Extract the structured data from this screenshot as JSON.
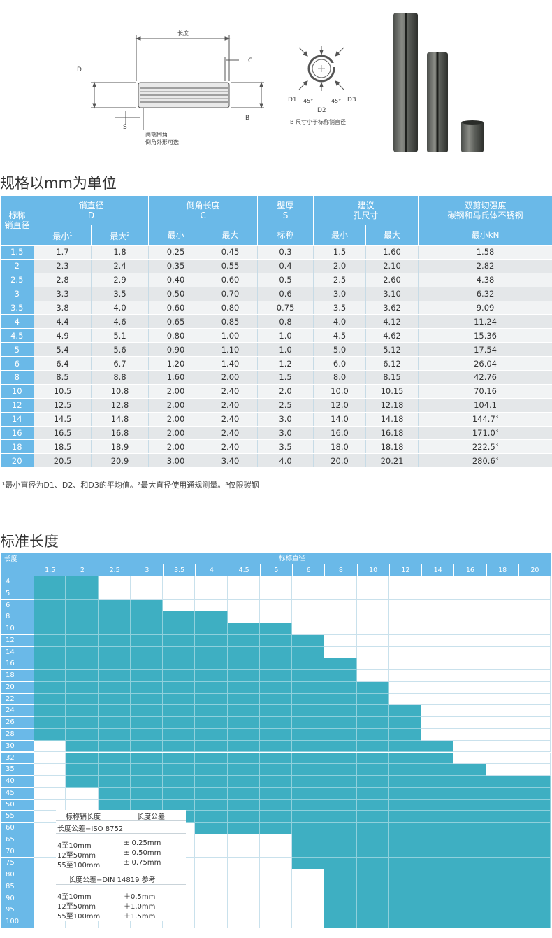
{
  "drawing": {
    "length_label": "长度",
    "c_label": "C",
    "d_label": "D",
    "b_label": "B",
    "s_label": "S",
    "chamfer_note1": "两端倒角",
    "chamfer_note2": "倒角外形可选",
    "d1_label": "D1",
    "d2_label": "D2",
    "d3_label": "D3",
    "angle1": "45°",
    "angle2": "45°",
    "b_note": "B 尺寸小于标称销直径"
  },
  "spec": {
    "title": "规格以mm为单位",
    "headers": {
      "nominal": "标称\n销直径",
      "pin_dia": "销直径",
      "pin_dia_sub": "D",
      "chamfer": "倒角长度",
      "chamfer_sub": "C",
      "wall": "壁厚",
      "wall_sub": "S",
      "hole": "建议\n孔尺寸",
      "shear": "双剪切强度\n碳钢和马氏体不锈钢",
      "min": "最小",
      "max": "最大",
      "nominal_sub": "标称",
      "min_kn": "最小kN",
      "sup1": "1",
      "sup2": "2"
    },
    "rows": [
      {
        "n": "1.5",
        "dmin": "1.7",
        "dmax": "1.8",
        "cmin": "0.25",
        "cmax": "0.45",
        "s": "0.3",
        "hmin": "1.5",
        "hmax": "1.60",
        "kn": "1.58",
        "sup": ""
      },
      {
        "n": "2",
        "dmin": "2.3",
        "dmax": "2.4",
        "cmin": "0.35",
        "cmax": "0.55",
        "s": "0.4",
        "hmin": "2.0",
        "hmax": "2.10",
        "kn": "2.82",
        "sup": ""
      },
      {
        "n": "2.5",
        "dmin": "2.8",
        "dmax": "2.9",
        "cmin": "0.40",
        "cmax": "0.60",
        "s": "0.5",
        "hmin": "2.5",
        "hmax": "2.60",
        "kn": "4.38",
        "sup": ""
      },
      {
        "n": "3",
        "dmin": "3.3",
        "dmax": "3.5",
        "cmin": "0.50",
        "cmax": "0.70",
        "s": "0.6",
        "hmin": "3.0",
        "hmax": "3.10",
        "kn": "6.32",
        "sup": ""
      },
      {
        "n": "3.5",
        "dmin": "3.8",
        "dmax": "4.0",
        "cmin": "0.60",
        "cmax": "0.80",
        "s": "0.75",
        "hmin": "3.5",
        "hmax": "3.62",
        "kn": "9.09",
        "sup": ""
      },
      {
        "n": "4",
        "dmin": "4.4",
        "dmax": "4.6",
        "cmin": "0.65",
        "cmax": "0.85",
        "s": "0.8",
        "hmin": "4.0",
        "hmax": "4.12",
        "kn": "11.24",
        "sup": ""
      },
      {
        "n": "4.5",
        "dmin": "4.9",
        "dmax": "5.1",
        "cmin": "0.80",
        "cmax": "1.00",
        "s": "1.0",
        "hmin": "4.5",
        "hmax": "4.62",
        "kn": "15.36",
        "sup": ""
      },
      {
        "n": "5",
        "dmin": "5.4",
        "dmax": "5.6",
        "cmin": "0.90",
        "cmax": "1.10",
        "s": "1.0",
        "hmin": "5.0",
        "hmax": "5.12",
        "kn": "17.54",
        "sup": ""
      },
      {
        "n": "6",
        "dmin": "6.4",
        "dmax": "6.7",
        "cmin": "1.20",
        "cmax": "1.40",
        "s": "1.2",
        "hmin": "6.0",
        "hmax": "6.12",
        "kn": "26.04",
        "sup": ""
      },
      {
        "n": "8",
        "dmin": "8.5",
        "dmax": "8.8",
        "cmin": "1.60",
        "cmax": "2.00",
        "s": "1.5",
        "hmin": "8.0",
        "hmax": "8.15",
        "kn": "42.76",
        "sup": ""
      },
      {
        "n": "10",
        "dmin": "10.5",
        "dmax": "10.8",
        "cmin": "2.00",
        "cmax": "2.40",
        "s": "2.0",
        "hmin": "10.0",
        "hmax": "10.15",
        "kn": "70.16",
        "sup": ""
      },
      {
        "n": "12",
        "dmin": "12.5",
        "dmax": "12.8",
        "cmin": "2.00",
        "cmax": "2.40",
        "s": "2.5",
        "hmin": "12.0",
        "hmax": "12.18",
        "kn": "104.1",
        "sup": ""
      },
      {
        "n": "14",
        "dmin": "14.5",
        "dmax": "14.8",
        "cmin": "2.00",
        "cmax": "2.40",
        "s": "3.0",
        "hmin": "14.0",
        "hmax": "14.18",
        "kn": "144.7",
        "sup": "3"
      },
      {
        "n": "16",
        "dmin": "16.5",
        "dmax": "16.8",
        "cmin": "2.00",
        "cmax": "2.40",
        "s": "3.0",
        "hmin": "16.0",
        "hmax": "16.18",
        "kn": "171.0",
        "sup": "3"
      },
      {
        "n": "18",
        "dmin": "18.5",
        "dmax": "18.9",
        "cmin": "2.00",
        "cmax": "2.40",
        "s": "3.5",
        "hmin": "18.0",
        "hmax": "18.18",
        "kn": "222.5",
        "sup": "3"
      },
      {
        "n": "20",
        "dmin": "20.5",
        "dmax": "20.9",
        "cmin": "3.00",
        "cmax": "3.40",
        "s": "4.0",
        "hmin": "20.0",
        "hmax": "20.21",
        "kn": "280.6",
        "sup": "3"
      }
    ],
    "footnote": "¹最小直径为D1、D2、和D3的平均值。²最大直径使用通规测量。³仅限碳钢"
  },
  "lengths": {
    "title": "标准长度",
    "corner_label": "长度",
    "diameter_header": "标称直径",
    "diameters": [
      "1.5",
      "2",
      "2.5",
      "3",
      "3.5",
      "4",
      "4.5",
      "5",
      "6",
      "8",
      "10",
      "12",
      "14",
      "16",
      "18",
      "20"
    ],
    "lengths": [
      "4",
      "5",
      "6",
      "8",
      "10",
      "12",
      "14",
      "16",
      "18",
      "20",
      "22",
      "24",
      "26",
      "28",
      "30",
      "32",
      "35",
      "40",
      "45",
      "50",
      "55",
      "60",
      "65",
      "70",
      "75",
      "80",
      "85",
      "90",
      "95",
      "100"
    ],
    "availability": {
      "1.5": [
        "4",
        "28"
      ],
      "2": [
        "4",
        "40"
      ],
      "2.5": [
        "6",
        "50"
      ],
      "3": [
        "6",
        "50"
      ],
      "3.5": [
        "8",
        "55"
      ],
      "4": [
        "8",
        "60"
      ],
      "4.5": [
        "10",
        "60"
      ],
      "5": [
        "10",
        "60"
      ],
      "6": [
        "12",
        "75"
      ],
      "8": [
        "16",
        "100"
      ],
      "10": [
        "20",
        "100"
      ],
      "12": [
        "24",
        "100"
      ],
      "14": [
        "30",
        "100"
      ],
      "16": [
        "35",
        "100"
      ],
      "18": [
        "40",
        "100"
      ],
      "20": [
        "40",
        "100"
      ]
    },
    "fill_color": "#3eafc2",
    "header_color": "#6ab9e8"
  },
  "tolerance": {
    "col1_header": "标称销长度",
    "col2_header": "长度公差",
    "iso_title": "长度公差−ISO 8752",
    "iso_rows": [
      {
        "range": "4至10mm",
        "tol": "± 0.25mm"
      },
      {
        "range": "12至50mm",
        "tol": "± 0.50mm"
      },
      {
        "range": "55至100mm",
        "tol": "± 0.75mm"
      }
    ],
    "din_title": "长度公差−DIN 14819   参考",
    "din_rows": [
      {
        "range": "4至10mm",
        "tol": "＋0.5mm"
      },
      {
        "range": "12至50mm",
        "tol": "＋1.0mm"
      },
      {
        "range": "55至100mm",
        "tol": "＋1.5mm"
      }
    ]
  }
}
